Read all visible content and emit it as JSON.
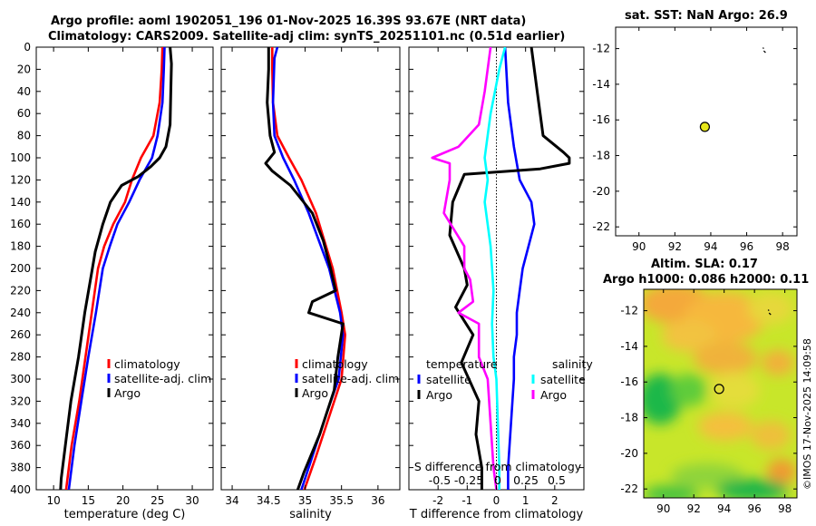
{
  "titles": {
    "line1": "Argo profile: aoml 1902051_196 01-Nov-2025 16.39S 93.67E (NRT data)",
    "line2": "Climatology: CARS2009. Satellite-adj clim: synTS_20251101.nc (0.51d earlier)",
    "sst": "sat. SST: NaN Argo: 26.9",
    "sla1": "Altim. SLA: 0.17",
    "sla2": "Argo h1000: 0.086 h2000: 0.11"
  },
  "credit": "©IMOS 17-Nov-2025 14:09:58",
  "colors": {
    "climatology": "#ff0000",
    "satellite": "#0000ff",
    "argo": "#000000",
    "satellite_s": "#00ffff",
    "argo_s": "#ff00ff",
    "marker": "#e6e619"
  },
  "chart_data": [
    {
      "type": "line",
      "name": "temperature profile",
      "xlabel": "temperature (deg C)",
      "xlim": [
        7.5,
        33
      ],
      "xticks": [
        "10",
        "15",
        "20",
        "25",
        "30"
      ],
      "xtick_values": [
        10,
        15,
        20,
        25,
        30
      ],
      "ylim": [
        400,
        0
      ],
      "yticks": [
        0,
        20,
        40,
        60,
        80,
        100,
        120,
        140,
        160,
        180,
        200,
        220,
        240,
        260,
        280,
        300,
        320,
        340,
        360,
        380,
        400
      ],
      "legend": [
        "climatology",
        "satellite-adj. clim",
        "Argo"
      ],
      "series": [
        {
          "name": "climatology",
          "color": "red",
          "x": [
            25.7,
            25.6,
            25.3,
            24.4,
            22.6,
            21.3,
            20.3,
            18.6,
            17.3,
            16.4,
            15.5,
            14.6,
            13.7,
            12.6,
            11.8
          ],
          "y": [
            0,
            20,
            50,
            80,
            100,
            120,
            140,
            160,
            180,
            200,
            240,
            280,
            320,
            360,
            400
          ]
        },
        {
          "name": "satellite-adj. clim",
          "color": "blue",
          "x": [
            26.0,
            25.9,
            25.7,
            25.0,
            24.2,
            22.4,
            20.9,
            19.2,
            18.1,
            17.1,
            16.1,
            15.0,
            14.0,
            13.0,
            12.2
          ],
          "y": [
            0,
            20,
            50,
            80,
            100,
            120,
            140,
            160,
            180,
            200,
            240,
            280,
            320,
            360,
            400
          ]
        },
        {
          "name": "Argo",
          "color": "black",
          "x": [
            26.8,
            27.0,
            26.9,
            26.8,
            26.2,
            25.3,
            24.0,
            22.2,
            19.8,
            18.2,
            17.1,
            16.0,
            15.6,
            14.5,
            13.6,
            12.5,
            11.9,
            11.1,
            11.0
          ],
          "y": [
            0,
            15,
            40,
            70,
            90,
            100,
            108,
            117,
            125,
            140,
            160,
            185,
            200,
            240,
            280,
            320,
            350,
            390,
            400
          ]
        }
      ]
    },
    {
      "type": "line",
      "name": "salinity profile",
      "xlabel": "salinity",
      "xlim": [
        33.85,
        36.3
      ],
      "xticks": [
        "34",
        "34.5",
        "35",
        "35.5",
        "36"
      ],
      "xtick_values": [
        34,
        34.5,
        35,
        35.5,
        36
      ],
      "ylim": [
        400,
        0
      ],
      "legend": [
        "climatology",
        "satellite-adj. clim",
        "Argo"
      ],
      "series": [
        {
          "name": "climatology",
          "color": "red",
          "x": [
            34.55,
            34.55,
            34.56,
            34.62,
            34.78,
            34.95,
            35.15,
            35.38,
            35.5,
            35.55,
            35.5,
            35.35,
            35.15,
            34.99
          ],
          "y": [
            0,
            20,
            50,
            80,
            100,
            120,
            150,
            200,
            240,
            260,
            300,
            330,
            370,
            400
          ]
        },
        {
          "name": "satellite-adj. clim",
          "color": "blue",
          "x": [
            34.62,
            34.58,
            34.56,
            34.58,
            34.7,
            34.85,
            35.05,
            35.33,
            35.48,
            35.52,
            35.46,
            35.3,
            35.1,
            34.95
          ],
          "y": [
            0,
            10,
            50,
            80,
            100,
            120,
            150,
            200,
            240,
            260,
            300,
            330,
            370,
            400
          ]
        },
        {
          "name": "Argo",
          "color": "black",
          "x": [
            34.5,
            34.5,
            34.48,
            34.52,
            34.58,
            34.46,
            34.55,
            34.8,
            35.1,
            35.25,
            35.35,
            35.42,
            35.1,
            35.05,
            35.52,
            35.45,
            35.4,
            35.2,
            34.98,
            34.9
          ],
          "y": [
            0,
            20,
            50,
            80,
            95,
            105,
            112,
            125,
            150,
            175,
            200,
            220,
            230,
            240,
            250,
            280,
            310,
            350,
            385,
            400
          ]
        }
      ]
    },
    {
      "type": "line",
      "name": "difference from climatology",
      "xlabel": "T difference from climatology",
      "xlim": [
        -3.0,
        3.0
      ],
      "xticks": [
        "-2",
        "-1",
        "0",
        "1",
        "2"
      ],
      "xtick_values": [
        -2,
        -1,
        0,
        1,
        2
      ],
      "top_xlabel": "S difference from climatology",
      "top_xticks": [
        "-0.5",
        "-0.25",
        "0",
        "0.25",
        "0.5"
      ],
      "ylim": [
        400,
        0
      ],
      "legend": [
        "temperature",
        "satellite",
        "Argo",
        "salinity",
        "satellite",
        "Argo"
      ],
      "series": [
        {
          "name": "T satellite",
          "color": "blue",
          "x": [
            0.3,
            0.4,
            0.6,
            0.8,
            1.2,
            1.3,
            0.9,
            0.8,
            0.7,
            0.7,
            0.6,
            0.6,
            0.5,
            0.4,
            0.4
          ],
          "y": [
            0,
            50,
            90,
            120,
            140,
            160,
            200,
            220,
            240,
            260,
            280,
            300,
            340,
            380,
            400
          ]
        },
        {
          "name": "T Argo",
          "color": "black",
          "x": [
            1.2,
            1.4,
            1.6,
            2.3,
            2.5,
            2.5,
            1.5,
            -1.1,
            -1.5,
            -1.6,
            -1.1,
            -1.0,
            -1.4,
            -0.8,
            -1.2,
            -0.6,
            -0.7,
            -0.5,
            -0.5
          ],
          "y": [
            0,
            40,
            80,
            95,
            100,
            105,
            110,
            115,
            140,
            170,
            200,
            215,
            235,
            260,
            285,
            320,
            350,
            380,
            400
          ]
        },
        {
          "name": "S satellite",
          "color": "cyan",
          "x": [
            0.3,
            0.1,
            -0.2,
            -0.4,
            -0.3,
            -0.4,
            -0.2,
            -0.1,
            -0.15,
            -0.1,
            0.0,
            0.05,
            0.1,
            0.1
          ],
          "y": [
            0,
            20,
            60,
            100,
            120,
            140,
            180,
            220,
            250,
            280,
            300,
            340,
            380,
            400
          ]
        },
        {
          "name": "S Argo",
          "color": "magenta",
          "x": [
            -0.2,
            -0.4,
            -0.6,
            -1.3,
            -2.2,
            -1.6,
            -1.6,
            -1.8,
            -1.1,
            -1.1,
            -0.9,
            -0.8,
            -1.3,
            -0.6,
            -0.6,
            -0.3,
            -0.2,
            -0.1,
            0.0
          ],
          "y": [
            0,
            40,
            70,
            90,
            100,
            105,
            120,
            150,
            180,
            200,
            210,
            230,
            240,
            250,
            280,
            300,
            340,
            380,
            400
          ]
        }
      ]
    },
    {
      "type": "scatter",
      "name": "sat. SST map",
      "xlim": [
        88.7,
        98.8
      ],
      "ylim": [
        -22.5,
        -10.8
      ],
      "xticks": [
        "90",
        "92",
        "94",
        "96",
        "98"
      ],
      "xtick_values": [
        90,
        92,
        94,
        96,
        98
      ],
      "yticks": [
        "-12",
        "-14",
        "-16",
        "-18",
        "-20",
        "-22"
      ],
      "ytick_values": [
        -12,
        -14,
        -16,
        -18,
        -20,
        -22
      ],
      "points": [
        {
          "x": 93.67,
          "y": -16.39
        }
      ]
    },
    {
      "type": "heatmap",
      "name": "Altim. SLA map",
      "xlim": [
        88.7,
        98.8
      ],
      "ylim": [
        -22.5,
        -10.8
      ],
      "xticks": [
        "90",
        "92",
        "94",
        "96",
        "98"
      ],
      "xtick_values": [
        90,
        92,
        94,
        96,
        98
      ],
      "yticks": [
        "-12",
        "-14",
        "-16",
        "-18",
        "-20",
        "-22"
      ],
      "ytick_values": [
        -12,
        -14,
        -16,
        -18,
        -20,
        -22
      ],
      "points": [
        {
          "x": 93.67,
          "y": -16.39
        }
      ]
    }
  ]
}
